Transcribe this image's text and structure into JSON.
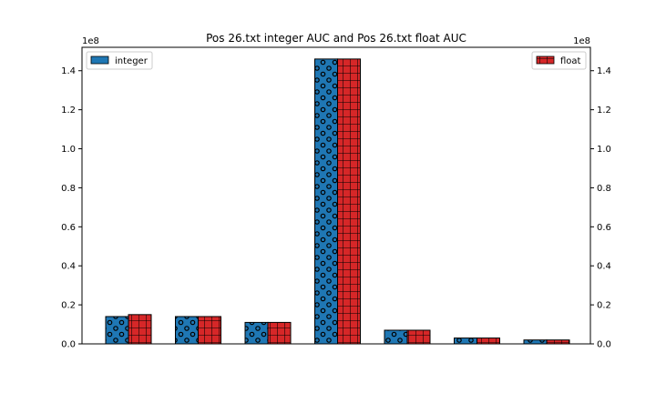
{
  "chart_data": {
    "type": "bar",
    "title": "Pos 26.txt integer AUC and Pos 26.txt float AUC",
    "xlabel": "",
    "ylabel": "",
    "categories": [
      "",
      "",
      "",
      "",
      "",
      "",
      ""
    ],
    "series": [
      {
        "name": "integer",
        "axis": "left",
        "values": [
          14000000,
          14000000,
          11000000,
          146000000,
          7000000,
          3000000,
          2000000
        ],
        "color": "#1f77b4",
        "hatch": "circles"
      },
      {
        "name": "float",
        "axis": "right",
        "values": [
          15000000,
          14000000,
          11000000,
          146000000,
          7000000,
          3000000,
          2000000
        ],
        "color": "#d62728",
        "hatch": "grid"
      }
    ],
    "ylim_left": [
      0,
      152000000
    ],
    "ylim_right": [
      0,
      152000000
    ],
    "yticks": [
      0,
      20000000,
      40000000,
      60000000,
      80000000,
      100000000,
      120000000,
      140000000
    ],
    "ytick_labels": [
      "0.0",
      "0.2",
      "0.4",
      "0.6",
      "0.8",
      "1.0",
      "1.2",
      "1.4"
    ],
    "offset_text_left": "1e8",
    "offset_text_right": "1e8",
    "legend_left": {
      "placement": "upper-left",
      "label": "integer"
    },
    "legend_right": {
      "placement": "upper-right",
      "label": "float"
    },
    "grid": false
  }
}
